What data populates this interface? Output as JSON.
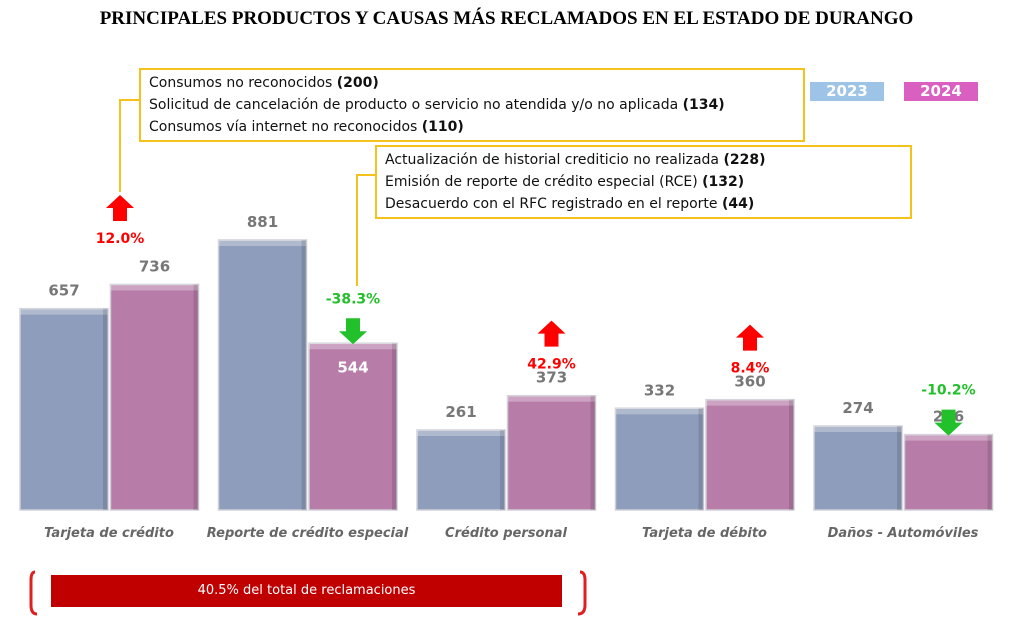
{
  "chart_data": {
    "type": "bar",
    "title": "PRINCIPALES PRODUCTOS Y CAUSAS MÁS RECLAMADOS EN EL ESTADO DE DURANGO",
    "categories": [
      "Tarjeta de crédito",
      "Reporte de crédito especial",
      "Crédito personal",
      "Tarjeta de débito",
      "Daños - Automóviles"
    ],
    "series": [
      {
        "name": "2023",
        "color": "#8e9dbb",
        "values": [
          657,
          881,
          261,
          332,
          274
        ]
      },
      {
        "name": "2024",
        "color": "#b77ca8",
        "values": [
          736,
          544,
          373,
          360,
          246
        ]
      }
    ],
    "changes": [
      {
        "label": "12.0%",
        "direction": "up"
      },
      {
        "label": "-38.3%",
        "direction": "down"
      },
      {
        "label": "42.9%",
        "direction": "up"
      },
      {
        "label": "8.4%",
        "direction": "up"
      },
      {
        "label": "-10.2%",
        "direction": "down"
      }
    ],
    "ylim": [
      0,
      881
    ],
    "legend": {
      "placement": "top-right",
      "items": [
        {
          "label": "2023",
          "color": "#9dc3e6"
        },
        {
          "label": "2024",
          "color": "#d95fc0"
        }
      ]
    },
    "annotations": [
      {
        "category": "Tarjeta de crédito",
        "lines": [
          {
            "text": "Consumos no reconocidos ",
            "value": "(200)"
          },
          {
            "text": "Solicitud de cancelación de producto o servicio no atendida y/o no aplicada ",
            "value": "(134)"
          },
          {
            "text": "Consumos vía internet no reconocidos ",
            "value": "(110)"
          }
        ]
      },
      {
        "category": "Reporte de crédito especial",
        "lines": [
          {
            "text": "Actualización de historial crediticio no realizada ",
            "value": "(228)"
          },
          {
            "text": "Emisión de reporte de crédito especial (RCE) ",
            "value": "(132)"
          },
          {
            "text": "Desacuerdo con el RFC registrado en el reporte ",
            "value": "(44)"
          }
        ]
      }
    ],
    "footer": "40.5% del total de reclamaciones"
  }
}
